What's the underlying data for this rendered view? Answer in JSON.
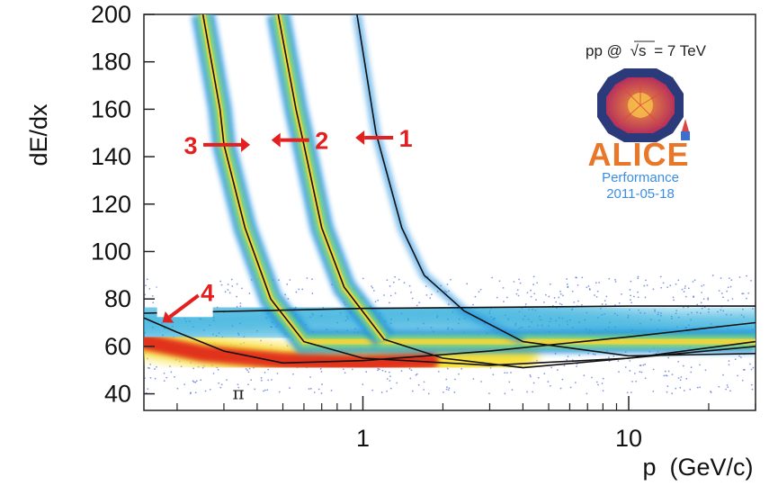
{
  "chart_data": {
    "type": "scatter",
    "subtype": "density-heatmap",
    "xlabel": "p  (GeV/c)",
    "ylabel": "dE/dx",
    "x_scale": "log",
    "xlim": [
      0.15,
      30
    ],
    "ylim": [
      33,
      200
    ],
    "x_tick_labels": [
      "1",
      "10"
    ],
    "x_ticks": [
      1,
      10
    ],
    "y_ticks": [
      40,
      60,
      80,
      100,
      120,
      140,
      160,
      180,
      200
    ],
    "series": [
      {
        "values": [
          [
            0.25,
            200
          ],
          [
            0.29,
            160
          ],
          [
            0.3,
            145
          ],
          [
            0.36,
            110
          ],
          [
            0.45,
            80
          ],
          [
            0.6,
            62
          ],
          [
            1.0,
            55
          ],
          [
            3.0,
            52
          ],
          [
            10,
            55
          ],
          [
            30,
            62
          ]
        ]
      },
      {
        "values": [
          [
            0.48,
            200
          ],
          [
            0.56,
            160
          ],
          [
            0.6,
            145
          ],
          [
            0.7,
            110
          ],
          [
            0.85,
            85
          ],
          [
            1.2,
            63
          ],
          [
            2.0,
            55
          ],
          [
            4.0,
            51
          ],
          [
            10,
            55
          ],
          [
            30,
            60
          ]
        ]
      },
      {
        "values": [
          [
            0.95,
            200
          ],
          [
            1.12,
            150
          ],
          [
            1.4,
            110
          ],
          [
            1.7,
            90
          ],
          [
            2.4,
            75
          ],
          [
            4.0,
            62
          ],
          [
            10,
            56
          ],
          [
            30,
            57
          ]
        ]
      },
      {
        "values": [
          [
            0.15,
            72
          ],
          [
            0.2,
            66
          ],
          [
            0.3,
            58
          ],
          [
            0.5,
            53
          ],
          [
            1,
            54
          ],
          [
            3,
            58
          ],
          [
            10,
            64
          ],
          [
            30,
            70
          ]
        ]
      },
      {
        "values": [
          [
            0.15,
            74
          ],
          [
            1,
            76
          ],
          [
            10,
            77
          ],
          [
            30,
            77
          ]
        ]
      }
    ],
    "annotations": [
      {
        "text": "1",
        "x": 1.45,
        "y": 148
      },
      {
        "text": "2",
        "x": 0.7,
        "y": 147
      },
      {
        "text": "3",
        "x": 0.225,
        "y": 145
      },
      {
        "text": "4",
        "x": 0.26,
        "y": 83
      },
      {
        "text": "π",
        "x": 0.34,
        "y": 40
      }
    ],
    "colors": {
      "annotation": "#e31f1f",
      "density_low": "#1f3fbf",
      "density_high": "#d11a1a"
    }
  },
  "legend": {
    "label": "pp @",
    "sqrt_s": "√s",
    "energy": "= 7 TeV",
    "logo_word": "ALICE",
    "performance": "Performance",
    "date": "2011-05-18",
    "logo_colors": {
      "orange": "#e8772a",
      "navy": "#2b3a7a",
      "blue": "#3c8de0"
    }
  }
}
